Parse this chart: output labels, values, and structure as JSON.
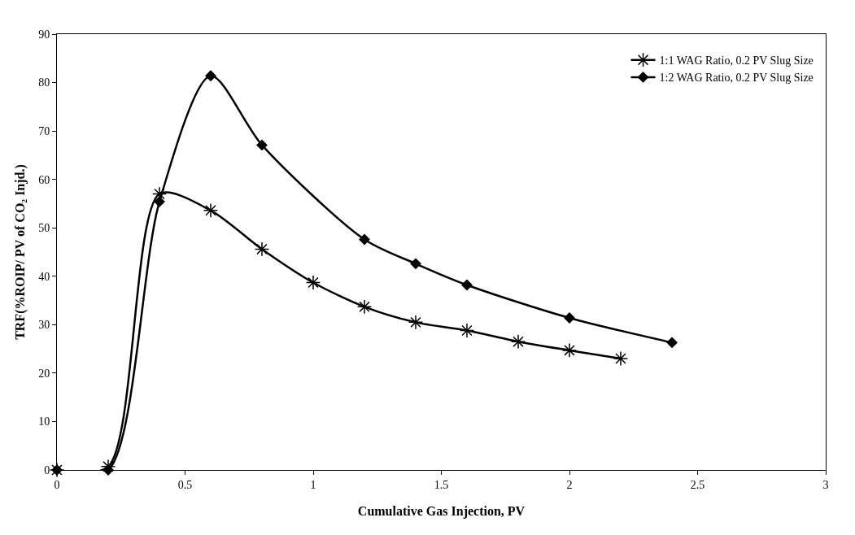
{
  "chart_data": {
    "type": "line",
    "xlabel": "Cumulative Gas Injection, PV",
    "ylabel": "TRF(%ROIP/ PV of CO₂ Injd.)",
    "xlim": [
      0,
      3
    ],
    "xticks": [
      0,
      0.5,
      1,
      1.5,
      2,
      2.5,
      3
    ],
    "ylim": [
      0,
      90
    ],
    "yticks": [
      0,
      10,
      20,
      30,
      40,
      50,
      60,
      70,
      80,
      90
    ],
    "grid": false,
    "legend": "top right",
    "line_style": "solid",
    "series": [
      {
        "name": "1:1 WAG Ratio, 0.2 PV Slug Size",
        "color": "#000000",
        "marker": "cross",
        "x": [
          0,
          0.2,
          0.4,
          0.6,
          0.8,
          1.0,
          1.2,
          1.4,
          1.6,
          1.8,
          2.0,
          2.2
        ],
        "values": [
          0,
          0.7,
          57,
          53.6,
          45.6,
          38.7,
          33.7,
          30.5,
          28.8,
          26.5,
          24.7,
          23
        ]
      },
      {
        "name": "1:2 WAG Ratio, 0.2 PV Slug Size",
        "color": "#000000",
        "marker": "diamond",
        "x": [
          0,
          0.2,
          0.4,
          0.6,
          0.8,
          1.2,
          1.4,
          1.6,
          2.0,
          2.4
        ],
        "values": [
          0,
          0,
          55.4,
          81.4,
          67.1,
          47.6,
          42.6,
          38.2,
          31.4,
          26.3
        ]
      }
    ]
  }
}
